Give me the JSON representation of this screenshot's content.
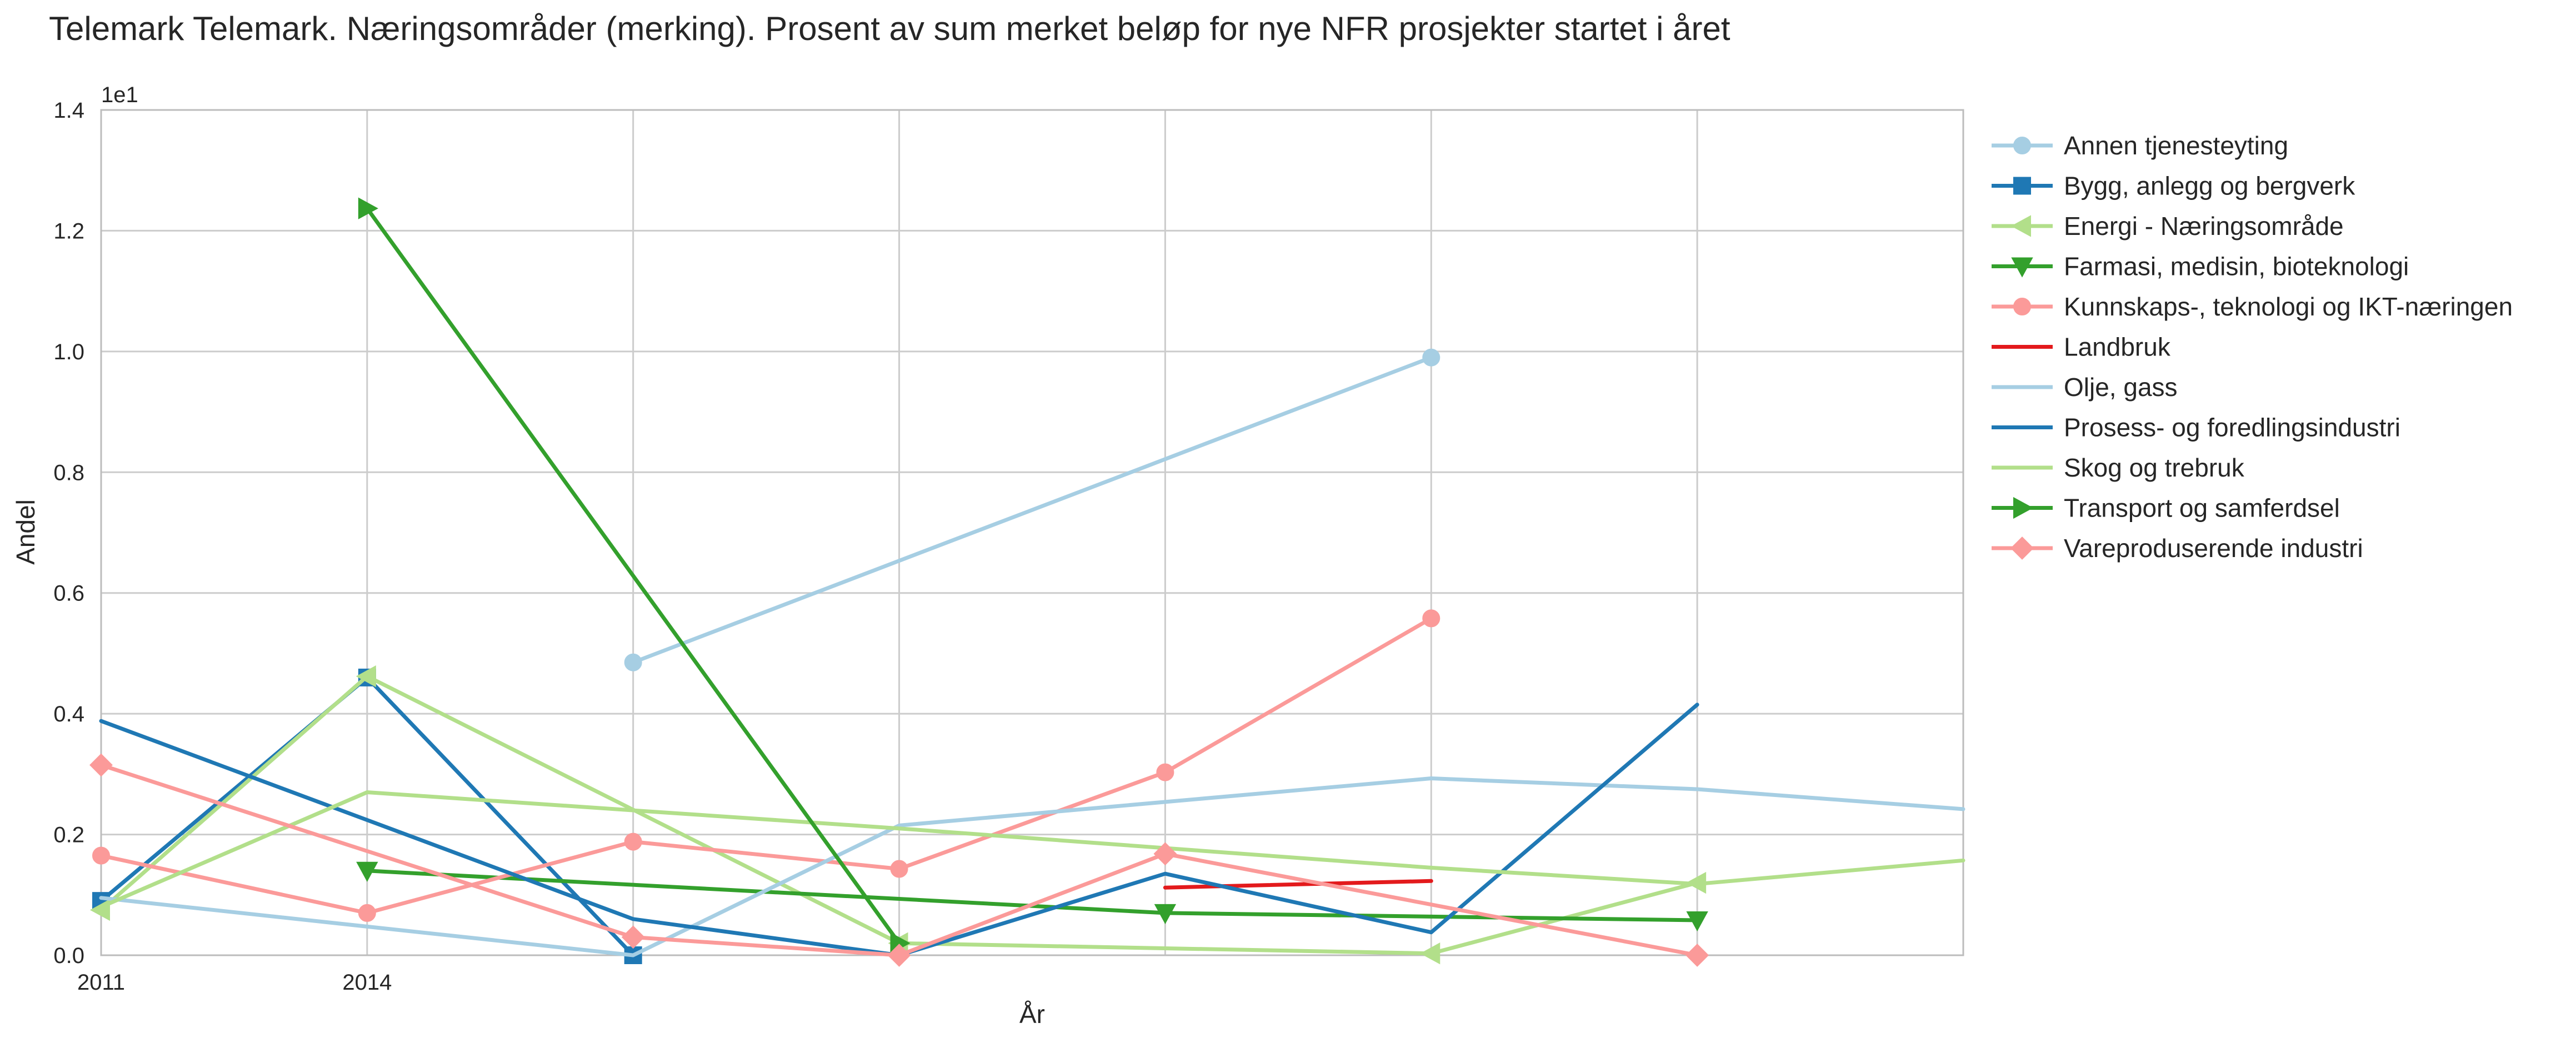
{
  "chart_data": {
    "type": "line",
    "title": "Telemark Telemark. Næringsområder (merking). Prosent av sum merket beløp for nye NFR prosjekter startet i året",
    "xlabel": "År",
    "ylabel": "Andel",
    "y_offset_text": "1e1",
    "xlim": [
      2011,
      2032
    ],
    "ylim": [
      0,
      1.4
    ],
    "x_ticks": [
      {
        "value": 2011,
        "label": "2011"
      },
      {
        "value": 2014,
        "label": "2014"
      }
    ],
    "y_ticks": [
      {
        "value": 0.0,
        "label": "0.0"
      },
      {
        "value": 0.2,
        "label": "0.2"
      },
      {
        "value": 0.4,
        "label": "0.4"
      },
      {
        "value": 0.6,
        "label": "0.6"
      },
      {
        "value": 0.8,
        "label": "0.8"
      },
      {
        "value": 1.0,
        "label": "1.0"
      },
      {
        "value": 1.2,
        "label": "1.2"
      },
      {
        "value": 1.4,
        "label": "1.4"
      }
    ],
    "x_gridlines": [
      2011,
      2014,
      2017,
      2020,
      2023,
      2026,
      2029
    ],
    "grid": true,
    "legend_position": "outside-right",
    "series": [
      {
        "name": "Annen tjenesteyting",
        "color": "#a6cee3",
        "marker": "circle",
        "x": [
          2017,
          2026
        ],
        "y": [
          0.485,
          0.99
        ]
      },
      {
        "name": "Bygg, anlegg og bergverk",
        "color": "#1f78b4",
        "marker": "square",
        "x": [
          2011,
          2014,
          2017
        ],
        "y": [
          0.09,
          0.46,
          0.0
        ]
      },
      {
        "name": "Energi - Næringsområde",
        "color": "#b2df8a",
        "marker": "triangle-left",
        "x": [
          2011,
          2014,
          2020,
          2026,
          2029
        ],
        "y": [
          0.075,
          0.462,
          0.02,
          0.003,
          0.12
        ]
      },
      {
        "name": "Farmasi, medisin, bioteknologi",
        "color": "#33a02c",
        "marker": "triangle-down",
        "x": [
          2014,
          2023,
          2029
        ],
        "y": [
          0.14,
          0.07,
          0.058
        ]
      },
      {
        "name": "Kunnskaps-, teknologi og IKT-næringen",
        "color": "#fb9a99",
        "marker": "circle",
        "x": [
          2011,
          2014,
          2017,
          2020,
          2023,
          2026
        ],
        "y": [
          0.165,
          0.07,
          0.188,
          0.143,
          0.303,
          0.558
        ]
      },
      {
        "name": "Landbruk",
        "color": "#e31a1c",
        "marker": "none",
        "x": [
          2023,
          2026
        ],
        "y": [
          0.112,
          0.123
        ]
      },
      {
        "name": "Olje, gass",
        "color": "#a6cee3",
        "marker": "none",
        "x": [
          2011,
          2017,
          2020,
          2026,
          2029,
          2032
        ],
        "y": [
          0.095,
          0.0,
          0.215,
          0.293,
          0.275,
          0.242
        ]
      },
      {
        "name": "Prosess- og foredlingsindustri",
        "color": "#1f78b4",
        "marker": "none",
        "x": [
          2011,
          2017,
          2020,
          2023,
          2026,
          2029
        ],
        "y": [
          0.388,
          0.06,
          0.0,
          0.135,
          0.038,
          0.415
        ]
      },
      {
        "name": "Skog og trebruk",
        "color": "#b2df8a",
        "marker": "none",
        "x": [
          2011,
          2014,
          2020,
          2026,
          2029,
          2032
        ],
        "y": [
          0.08,
          0.27,
          0.21,
          0.145,
          0.118,
          0.157
        ]
      },
      {
        "name": "Transport og samferdsel",
        "color": "#33a02c",
        "marker": "triangle-right",
        "x": [
          2014,
          2020
        ],
        "y": [
          1.237,
          0.02
        ]
      },
      {
        "name": "Vareproduserende industri",
        "color": "#fb9a99",
        "marker": "diamond",
        "x": [
          2011,
          2017,
          2020,
          2023,
          2029
        ],
        "y": [
          0.315,
          0.03,
          0.0,
          0.168,
          0.0
        ]
      }
    ]
  }
}
